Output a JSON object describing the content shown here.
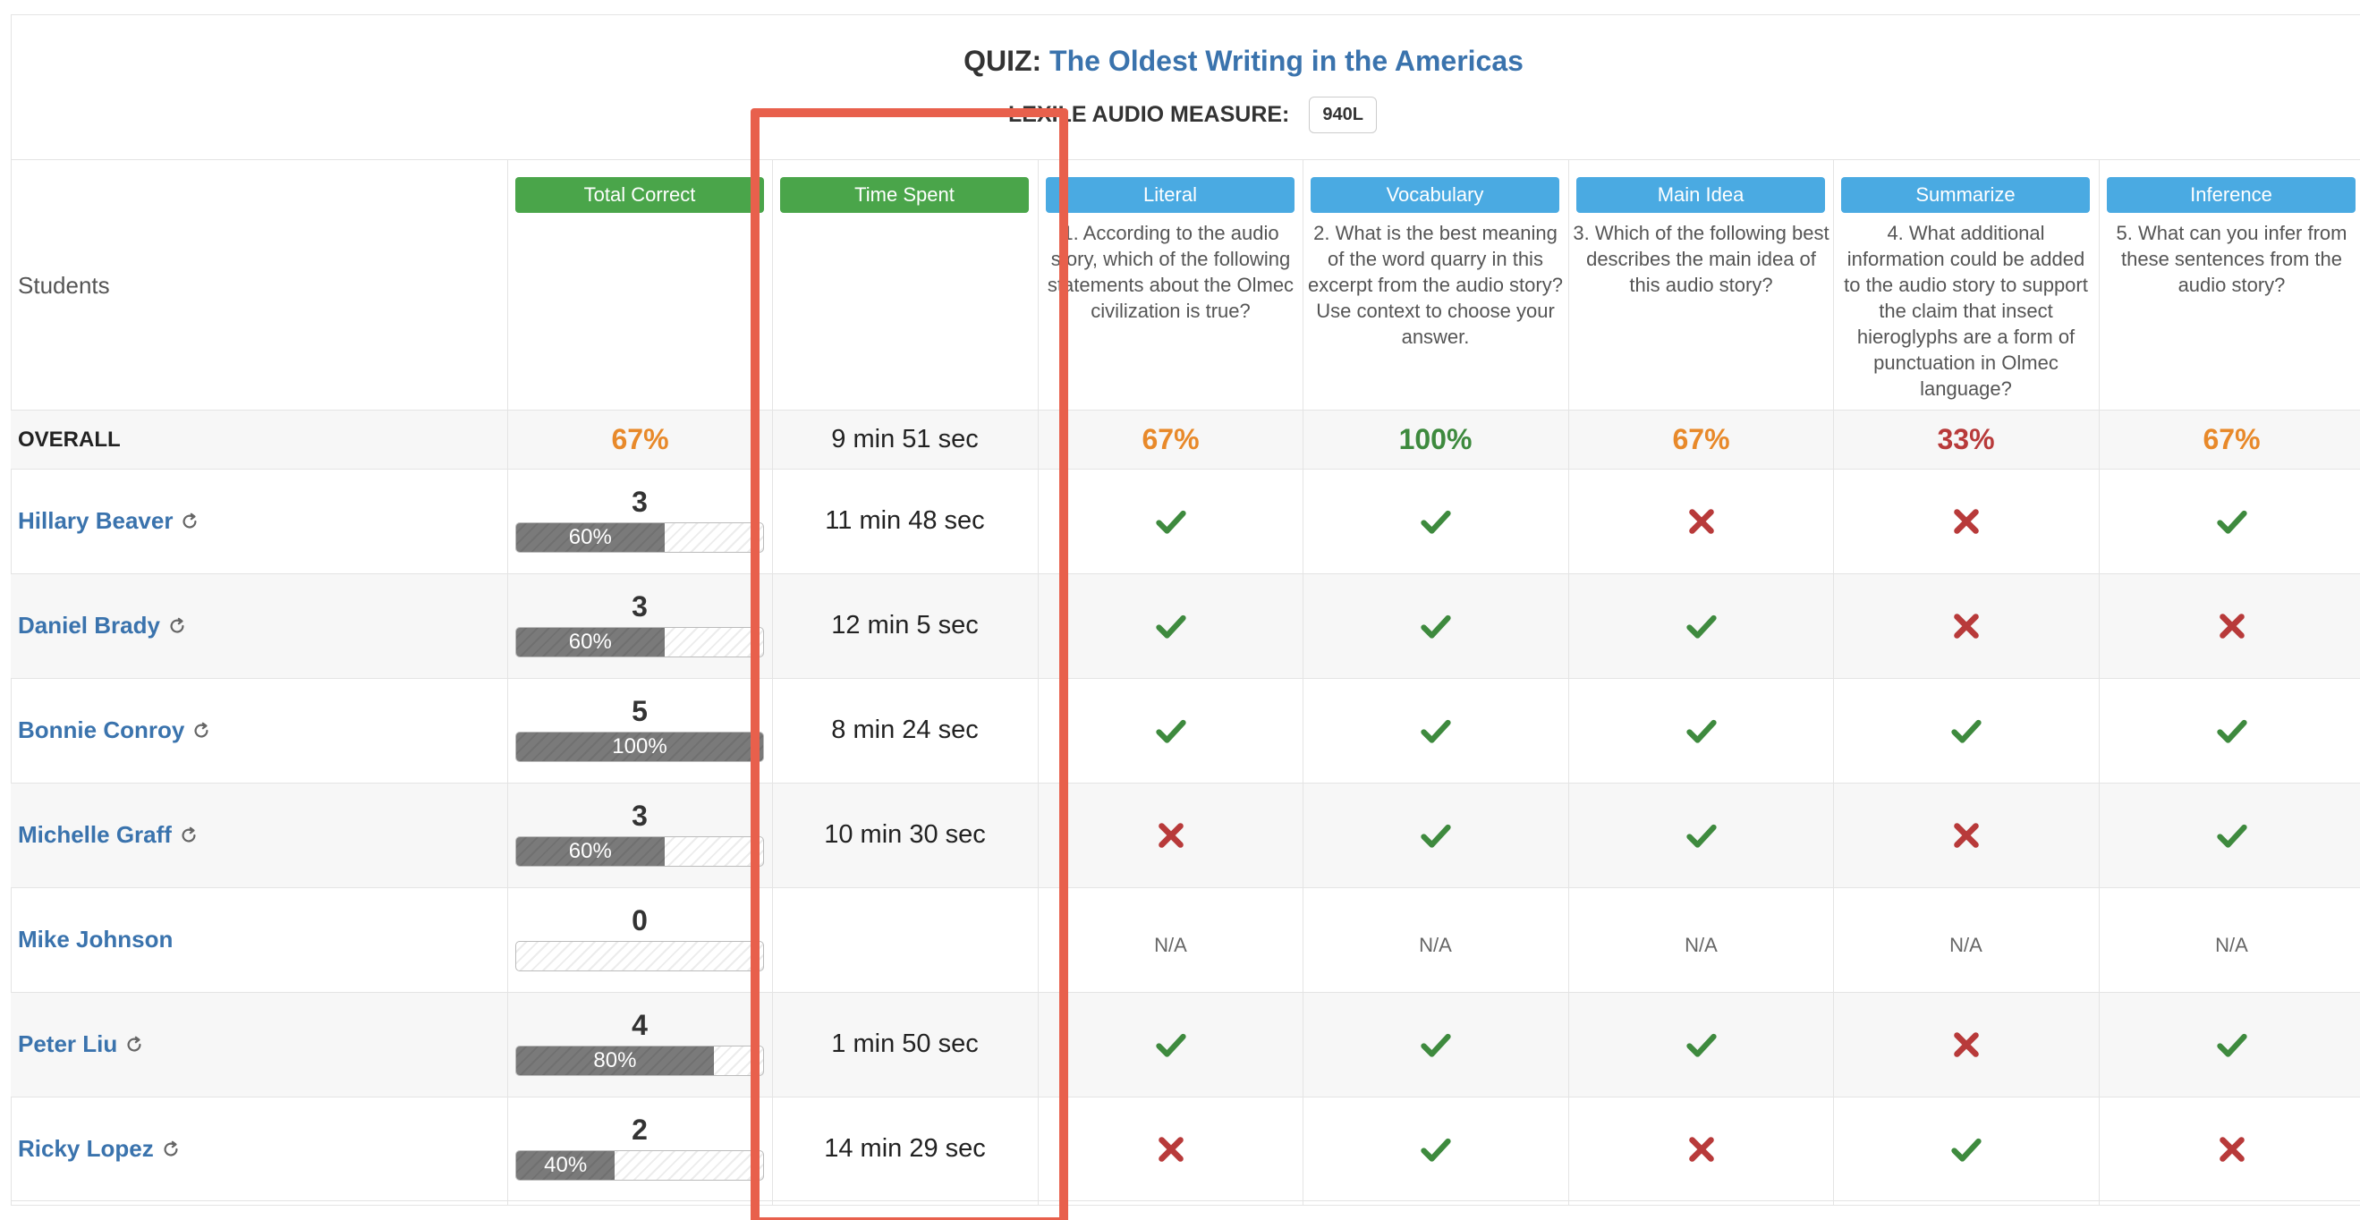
{
  "quiz": {
    "title_prefix": "QUIZ:",
    "title": "The Oldest Writing in the Americas",
    "lexile_label": "LEXILE AUDIO MEASURE:",
    "lexile_value": "940L"
  },
  "table": {
    "students_header": "Students",
    "columns": [
      {
        "label": "Total Correct",
        "color": "#4aa54a"
      },
      {
        "label": "Time Spent",
        "color": "#4aa54a"
      },
      {
        "label": "Literal",
        "color": "#4aaae2",
        "question": "1. According to the audio story, which of the following statements about the Olmec civilization is true?"
      },
      {
        "label": "Vocabulary",
        "color": "#4aaae2",
        "question": "2. What is the best meaning of the word quarry in this excerpt from the audio story? Use context to choose your answer."
      },
      {
        "label": "Main Idea",
        "color": "#4aaae2",
        "question": "3. Which of the following best describes the main idea of this audio story?"
      },
      {
        "label": "Summarize",
        "color": "#4aaae2",
        "question": "4. What additional information could be added to the audio story to support the claim that insect hieroglyphs are a form of punctuation in Olmec language?"
      },
      {
        "label": "Inference",
        "color": "#4aaae2",
        "question": "5. What can you infer from these sentences from the audio story?"
      }
    ],
    "overall": {
      "label": "OVERALL",
      "total_correct": "67%",
      "time_spent": "9 min 51 sec",
      "questions": [
        "67%",
        "100%",
        "67%",
        "33%",
        "67%"
      ]
    },
    "students": [
      {
        "name": "Hillary Beaver",
        "retake": true,
        "score": "3",
        "percent": 60,
        "percent_label": "60%",
        "time": "11 min 48 sec",
        "answers": [
          "correct",
          "correct",
          "wrong",
          "wrong",
          "correct"
        ]
      },
      {
        "name": "Daniel Brady",
        "retake": true,
        "score": "3",
        "percent": 60,
        "percent_label": "60%",
        "time": "12 min 5 sec",
        "answers": [
          "correct",
          "correct",
          "correct",
          "wrong",
          "wrong"
        ]
      },
      {
        "name": "Bonnie Conroy",
        "retake": true,
        "score": "5",
        "percent": 100,
        "percent_label": "100%",
        "time": "8 min 24 sec",
        "answers": [
          "correct",
          "correct",
          "correct",
          "correct",
          "correct"
        ]
      },
      {
        "name": "Michelle Graff",
        "retake": true,
        "score": "3",
        "percent": 60,
        "percent_label": "60%",
        "time": "10 min 30 sec",
        "answers": [
          "wrong",
          "correct",
          "correct",
          "wrong",
          "correct"
        ]
      },
      {
        "name": "Mike Johnson",
        "retake": false,
        "score": "0",
        "percent": 0,
        "percent_label": "",
        "time": "",
        "answers": [
          "N/A",
          "N/A",
          "N/A",
          "N/A",
          "N/A"
        ]
      },
      {
        "name": "Peter Liu",
        "retake": true,
        "score": "4",
        "percent": 80,
        "percent_label": "80%",
        "time": "1 min 50 sec",
        "answers": [
          "correct",
          "correct",
          "correct",
          "wrong",
          "correct"
        ]
      },
      {
        "name": "Ricky Lopez",
        "retake": true,
        "score": "2",
        "percent": 40,
        "percent_label": "40%",
        "time": "14 min 29 sec",
        "answers": [
          "wrong",
          "correct",
          "wrong",
          "correct",
          "wrong"
        ]
      }
    ]
  },
  "colors": {
    "link": "#3a73ad",
    "correct": "#3e8a3e",
    "wrong": "#b83a3a",
    "highlight": "#e8604c"
  },
  "icons": {
    "correct": "check-icon",
    "wrong": "cross-icon",
    "retake": "refresh-icon"
  }
}
